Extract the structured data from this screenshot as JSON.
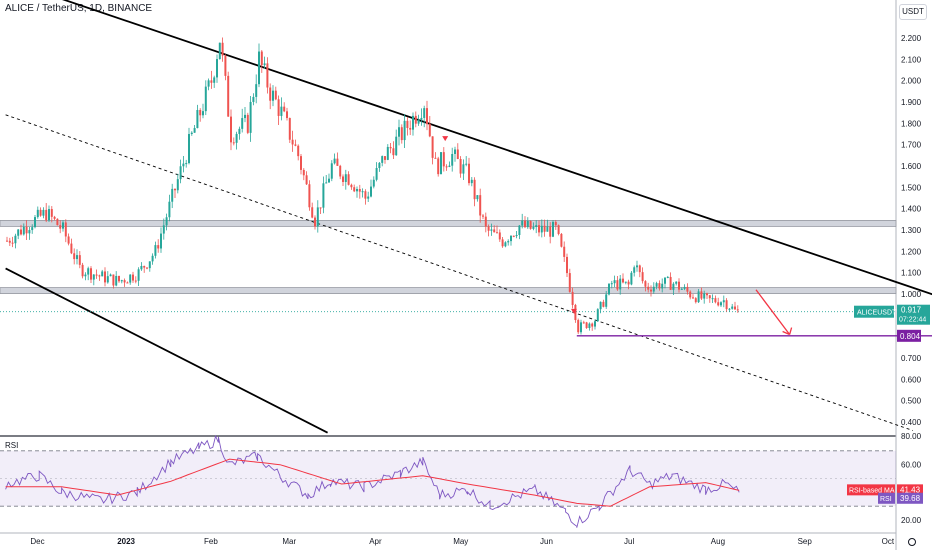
{
  "header": {
    "title": "ALICE / TetherUS, 1D, BINANCE",
    "currency": "USDT"
  },
  "chart_data": [
    {
      "type": "candlestick",
      "symbol": "ALICEUSDT",
      "ylim": [
        0.35,
        2.3
      ],
      "yticks": [
        "2.200",
        "2.100",
        "2.000",
        "1.900",
        "1.800",
        "1.700",
        "1.600",
        "1.500",
        "1.400",
        "1.300",
        "1.200",
        "1.100",
        "1.000",
        "0.900",
        "0.800",
        "0.700",
        "0.600",
        "0.500",
        "0.400"
      ],
      "xticks": [
        "Dec",
        "2023",
        "Feb",
        "Mar",
        "Apr",
        "May",
        "Jun",
        "Jul",
        "Aug",
        "Sep",
        "Oct"
      ],
      "last_price": {
        "label": "ALICEUSDT",
        "value": "0.917",
        "countdown": "07:22:44",
        "color": "#26a69a"
      },
      "level_label": {
        "value": "0.804",
        "color": "#7b1fa2"
      },
      "support_zones": [
        {
          "low": 1.325,
          "high": 1.345
        },
        {
          "low": 1.005,
          "high": 1.03
        }
      ],
      "price_path": [
        [
          "2022-11-20",
          1.25
        ],
        [
          "2022-11-28",
          1.33
        ],
        [
          "2022-12-04",
          1.38
        ],
        [
          "2022-12-10",
          1.3
        ],
        [
          "2022-12-16",
          1.12
        ],
        [
          "2022-12-24",
          1.08
        ],
        [
          "2022-12-30",
          1.06
        ],
        [
          "2023-01-06",
          1.1
        ],
        [
          "2023-01-12",
          1.2
        ],
        [
          "2023-01-18",
          1.45
        ],
        [
          "2023-01-24",
          1.7
        ],
        [
          "2023-01-28",
          1.85
        ],
        [
          "2023-02-01",
          2.0
        ],
        [
          "2023-02-04",
          2.2
        ],
        [
          "2023-02-08",
          1.75
        ],
        [
          "2023-02-14",
          1.8
        ],
        [
          "2023-02-18",
          2.1
        ],
        [
          "2023-02-22",
          1.95
        ],
        [
          "2023-02-26",
          1.85
        ],
        [
          "2023-03-04",
          1.65
        ],
        [
          "2023-03-10",
          1.35
        ],
        [
          "2023-03-16",
          1.6
        ],
        [
          "2023-03-22",
          1.55
        ],
        [
          "2023-03-28",
          1.45
        ],
        [
          "2023-04-04",
          1.65
        ],
        [
          "2023-04-10",
          1.75
        ],
        [
          "2023-04-18",
          1.9
        ],
        [
          "2023-04-22",
          1.6
        ],
        [
          "2023-04-28",
          1.65
        ],
        [
          "2023-05-04",
          1.55
        ],
        [
          "2023-05-10",
          1.3
        ],
        [
          "2023-05-16",
          1.25
        ],
        [
          "2023-05-22",
          1.32
        ],
        [
          "2023-05-28",
          1.3
        ],
        [
          "2023-06-04",
          1.3
        ],
        [
          "2023-06-08",
          1.1
        ],
        [
          "2023-06-12",
          0.84
        ],
        [
          "2023-06-18",
          0.88
        ],
        [
          "2023-06-24",
          1.05
        ],
        [
          "2023-06-30",
          1.04
        ],
        [
          "2023-07-02",
          1.15
        ],
        [
          "2023-07-06",
          1.03
        ],
        [
          "2023-07-12",
          1.05
        ],
        [
          "2023-07-16",
          1.05
        ],
        [
          "2023-07-22",
          1.0
        ],
        [
          "2023-07-28",
          0.97
        ],
        [
          "2023-08-03",
          0.97
        ],
        [
          "2023-08-07",
          0.92
        ],
        [
          "2023-08-09",
          0.917
        ]
      ],
      "drawings": {
        "upper_channel": [
          [
            "2022-11-25",
            2.45
          ],
          [
            "2023-10-20",
            0.985
          ]
        ],
        "lower_channel": [
          [
            "2022-11-20",
            1.12
          ],
          [
            "2023-03-15",
            0.35
          ]
        ],
        "mid_channel_dashed": [
          [
            "2022-11-20",
            1.84
          ],
          [
            "2023-10-10",
            0.36
          ]
        ],
        "support_line_0804": [
          [
            "2023-06-12",
            0.804
          ],
          [
            "2023-10-31",
            0.804
          ]
        ],
        "projection_arrow": [
          [
            "2023-08-15",
            1.02
          ],
          [
            "2023-08-27",
            0.81
          ]
        ]
      }
    },
    {
      "type": "line",
      "title": "RSI",
      "ylim": [
        10,
        80
      ],
      "yticks": [
        "60.00",
        "40.00",
        "20.00"
      ],
      "upper_band": 70,
      "lower_band": 30,
      "series": [
        {
          "name": "RSI",
          "current": "39.68",
          "color": "#7e57c2",
          "points": [
            [
              "2022-11-20",
              46
            ],
            [
              "2022-12-02",
              52
            ],
            [
              "2022-12-10",
              40
            ],
            [
              "2022-12-24",
              34
            ],
            [
              "2023-01-06",
              40
            ],
            [
              "2023-01-18",
              62
            ],
            [
              "2023-01-28",
              72
            ],
            [
              "2023-02-04",
              78
            ],
            [
              "2023-02-08",
              60
            ],
            [
              "2023-02-18",
              66
            ],
            [
              "2023-02-26",
              52
            ],
            [
              "2023-03-08",
              38
            ],
            [
              "2023-03-16",
              48
            ],
            [
              "2023-03-28",
              44
            ],
            [
              "2023-04-10",
              54
            ],
            [
              "2023-04-18",
              62
            ],
            [
              "2023-04-24",
              38
            ],
            [
              "2023-05-04",
              42
            ],
            [
              "2023-05-12",
              30
            ],
            [
              "2023-05-28",
              42
            ],
            [
              "2023-06-08",
              26
            ],
            [
              "2023-06-12",
              18
            ],
            [
              "2023-06-20",
              30
            ],
            [
              "2023-07-01",
              56
            ],
            [
              "2023-07-08",
              46
            ],
            [
              "2023-07-16",
              52
            ],
            [
              "2023-07-28",
              42
            ],
            [
              "2023-08-04",
              46
            ],
            [
              "2023-08-09",
              39.68
            ]
          ]
        },
        {
          "name": "RSI-based MA",
          "current": "41.43",
          "color": "#f23645",
          "points": [
            [
              "2022-11-20",
              44
            ],
            [
              "2022-12-10",
              44
            ],
            [
              "2022-12-30",
              38
            ],
            [
              "2023-01-18",
              48
            ],
            [
              "2023-02-08",
              64
            ],
            [
              "2023-02-26",
              60
            ],
            [
              "2023-03-20",
              46
            ],
            [
              "2023-04-18",
              52
            ],
            [
              "2023-05-04",
              46
            ],
            [
              "2023-05-28",
              38
            ],
            [
              "2023-06-12",
              32
            ],
            [
              "2023-06-24",
              30
            ],
            [
              "2023-07-08",
              44
            ],
            [
              "2023-07-28",
              47
            ],
            [
              "2023-08-09",
              41.43
            ]
          ]
        }
      ]
    }
  ]
}
